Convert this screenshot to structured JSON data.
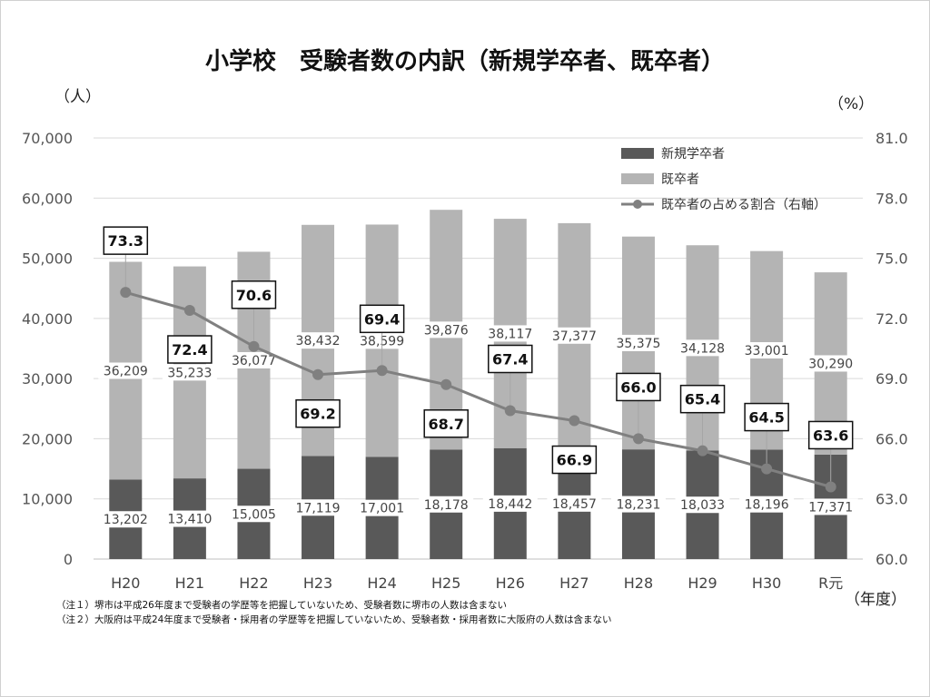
{
  "title": "小学校　受験者数の内訳（新規学卒者、既卒者）",
  "left_unit": "（人）",
  "right_unit": "（%）",
  "year_unit": "（年度）",
  "legend": {
    "new_graduates": "新規学卒者",
    "previous_graduates": "既卒者",
    "ratio": "既卒者の占める割合（右軸）"
  },
  "notes": [
    "（注１）堺市は平成26年度まで受験者の学歴等を把握していないため、受験者数に堺市の人数は含まない",
    "（注２）大阪府は平成24年度まで受験者・採用者の学歴等を把握していないため、受験者数・採用者数に大阪府の人数は含まない"
  ],
  "colors": {
    "new_graduates": "#595959",
    "previous_graduates": "#b4b4b4",
    "ratio_line": "#808080",
    "grid": "#d9d9d9"
  },
  "chart_data": {
    "type": "bar",
    "stacked": true,
    "categories": [
      "H20",
      "H21",
      "H22",
      "H23",
      "H24",
      "H25",
      "H26",
      "H27",
      "H28",
      "H29",
      "H30",
      "R元"
    ],
    "series": [
      {
        "name": "新規学卒者",
        "values": [
          13202,
          13410,
          15005,
          17119,
          17001,
          18178,
          18442,
          18457,
          18231,
          18033,
          18196,
          17371
        ],
        "labels": [
          "13,202",
          "13,410",
          "15,005",
          "17,119",
          "17,001",
          "18,178",
          "18,442",
          "18,457",
          "18,231",
          "18,033",
          "18,196",
          "17,371"
        ]
      },
      {
        "name": "既卒者",
        "values": [
          36209,
          35233,
          36077,
          38432,
          38599,
          39876,
          38117,
          37377,
          35375,
          34128,
          33001,
          30290
        ],
        "labels": [
          "36,209",
          "35,233",
          "36,077",
          "38,432",
          "38,599",
          "39,876",
          "38,117",
          "37,377",
          "35,375",
          "34,128",
          "33,001",
          "30,290"
        ]
      }
    ],
    "line_series": {
      "name": "既卒者の占める割合（右軸）",
      "axis": "right",
      "values": [
        73.3,
        72.4,
        70.6,
        69.2,
        69.4,
        68.7,
        67.4,
        66.9,
        66.0,
        65.4,
        64.5,
        63.6
      ],
      "labels": [
        "73.3",
        "72.4",
        "70.6",
        "69.2",
        "69.4",
        "68.7",
        "67.4",
        "66.9",
        "66.0",
        "65.4",
        "64.5",
        "63.6"
      ]
    },
    "y_left": {
      "lim": [
        0,
        70000
      ],
      "ticks": [
        "0",
        "10,000",
        "20,000",
        "30,000",
        "40,000",
        "50,000",
        "60,000",
        "70,000"
      ]
    },
    "y_right": {
      "lim": [
        60.0,
        81.0
      ],
      "ticks": [
        "60.0",
        "63.0",
        "66.0",
        "69.0",
        "72.0",
        "75.0",
        "78.0",
        "81.0"
      ]
    },
    "grid": true,
    "legend_position": "top-right"
  }
}
